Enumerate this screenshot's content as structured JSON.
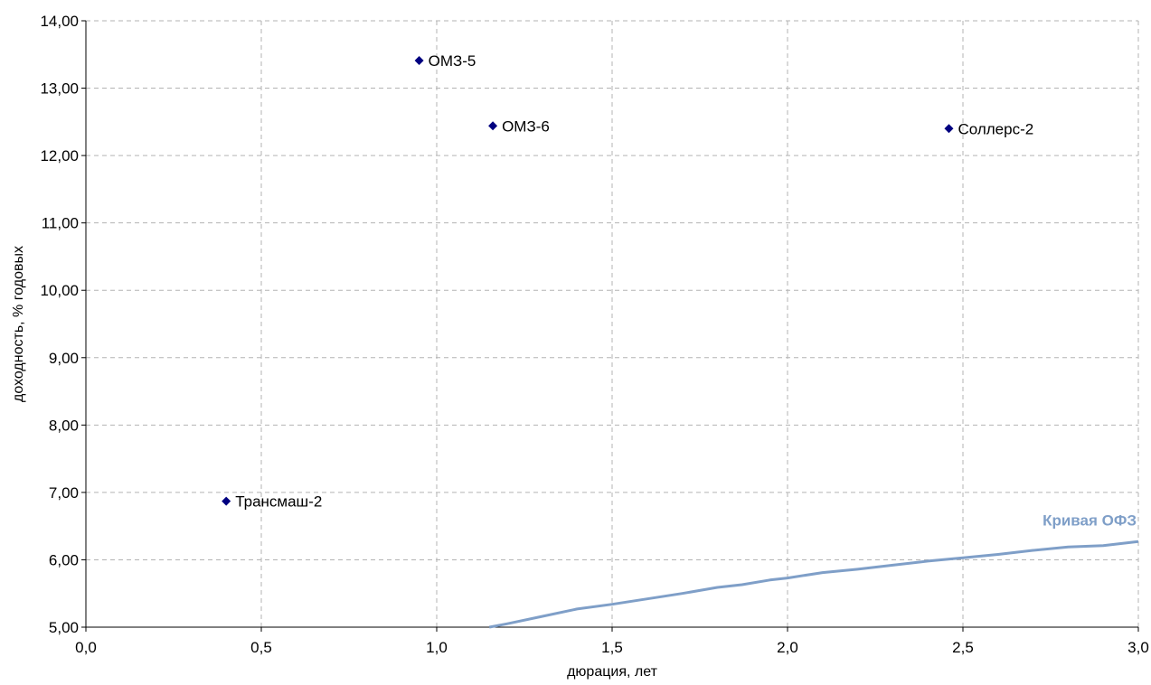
{
  "chart_data": {
    "type": "scatter",
    "xlabel": "дюрация, лет",
    "ylabel": "доходность, % годовых",
    "xlim": [
      0,
      3
    ],
    "ylim": [
      5,
      14
    ],
    "x_ticks": [
      "0,0",
      "0,5",
      "1,0",
      "1,5",
      "2,0",
      "2,5",
      "3,0"
    ],
    "y_ticks": [
      "5,00",
      "6,00",
      "7,00",
      "8,00",
      "9,00",
      "10,00",
      "11,00",
      "12,00",
      "13,00",
      "14,00"
    ],
    "grid": true,
    "points": [
      {
        "label": "ОМЗ-5",
        "x": 0.95,
        "y": 13.41
      },
      {
        "label": "ОМЗ-6",
        "x": 1.16,
        "y": 12.44
      },
      {
        "label": "Соллерс-2",
        "x": 2.46,
        "y": 12.4
      },
      {
        "label": "Трансмаш-2",
        "x": 0.4,
        "y": 6.87
      }
    ],
    "curve": {
      "name": "Кривая ОФЗ",
      "color": "#7f9fc8",
      "x": [
        1.15,
        1.2,
        1.3,
        1.4,
        1.5,
        1.6,
        1.7,
        1.8,
        1.87,
        1.95,
        2.0,
        2.1,
        2.2,
        2.3,
        2.4,
        2.5,
        2.6,
        2.7,
        2.8,
        2.9,
        3.0
      ],
      "y": [
        5.0,
        5.05,
        5.16,
        5.27,
        5.34,
        5.42,
        5.5,
        5.59,
        5.63,
        5.7,
        5.73,
        5.81,
        5.86,
        5.92,
        5.98,
        6.03,
        6.08,
        6.14,
        6.19,
        6.21,
        6.27
      ]
    },
    "marker_color": "#000080"
  }
}
